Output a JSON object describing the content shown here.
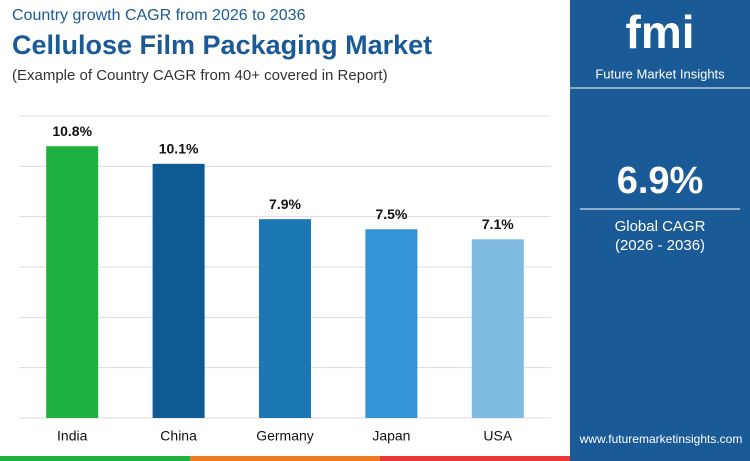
{
  "chart_data": {
    "type": "bar",
    "kicker": "Country growth CAGR from 2026 to 2036",
    "title": "Cellulose Film Packaging Market",
    "subtitle": "(Example of Country CAGR from 40+ covered in Report)",
    "categories": [
      "India",
      "China",
      "Germany",
      "Japan",
      "USA"
    ],
    "values": [
      10.8,
      10.1,
      7.9,
      7.5,
      7.1
    ],
    "value_labels": [
      "10.8%",
      "10.1%",
      "7.9%",
      "7.5%",
      "7.1%"
    ],
    "colors": [
      "#1fb13f",
      "#0f5a93",
      "#1c77b5",
      "#3494d5",
      "#7fbae2"
    ],
    "ylim": [
      0,
      12
    ],
    "yticks": [
      0,
      2,
      4,
      6,
      8,
      10,
      12
    ],
    "grid": true
  },
  "sidebar": {
    "logo": "fmi",
    "brand": "Future Market Insights",
    "value": "6.9%",
    "label": "Global CAGR",
    "period": "(2026 - 2036)",
    "website": "www.futuremarketinsights.com"
  }
}
